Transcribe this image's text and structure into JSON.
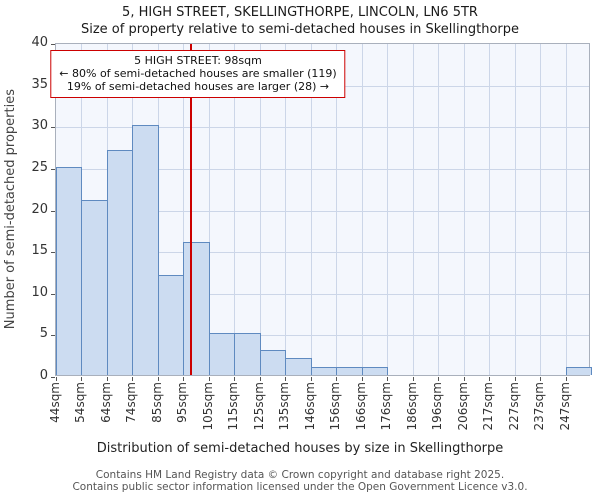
{
  "annotation": {
    "line1": "5 HIGH STREET: 98sqm",
    "line2": "← 80% of semi-detached houses are smaller (119)",
    "line3": "19% of semi-detached houses are larger (28) →"
  },
  "footer": {
    "line1": "Contains HM Land Registry data © Crown copyright and database right 2025.",
    "line2": "Contains public sector information licensed under the Open Government Licence v3.0."
  },
  "chart_data": {
    "type": "bar",
    "title": "5, HIGH STREET, SKELLINGTHORPE, LINCOLN, LN6 5TR",
    "subtitle": "Size of property relative to semi-detached houses in Skellingthorpe",
    "categories": [
      "44sqm",
      "54sqm",
      "64sqm",
      "74sqm",
      "85sqm",
      "95sqm",
      "105sqm",
      "115sqm",
      "125sqm",
      "135sqm",
      "146sqm",
      "156sqm",
      "166sqm",
      "176sqm",
      "186sqm",
      "196sqm",
      "206sqm",
      "217sqm",
      "227sqm",
      "237sqm",
      "247sqm"
    ],
    "values": [
      25,
      21,
      27,
      30,
      12,
      16,
      5,
      5,
      3,
      2,
      1,
      1,
      1,
      0,
      0,
      0,
      0,
      0,
      0,
      0,
      1
    ],
    "xlabel": "Distribution of semi-detached houses by size in Skellingthorpe",
    "ylabel": "Number of semi-detached properties",
    "ylim": [
      0,
      40
    ],
    "yticks": [
      0,
      5,
      10,
      15,
      20,
      25,
      30,
      35,
      40
    ],
    "grid": true,
    "legend": "none",
    "marker": {
      "size_sqm": 98
    },
    "colors": {
      "bar_fill": "#ccdcf1",
      "bar_border": "#5f8ac0",
      "marker_line": "#cc0000",
      "grid": "#ccd6e8",
      "plot_bg": "#f4f7fd"
    }
  }
}
